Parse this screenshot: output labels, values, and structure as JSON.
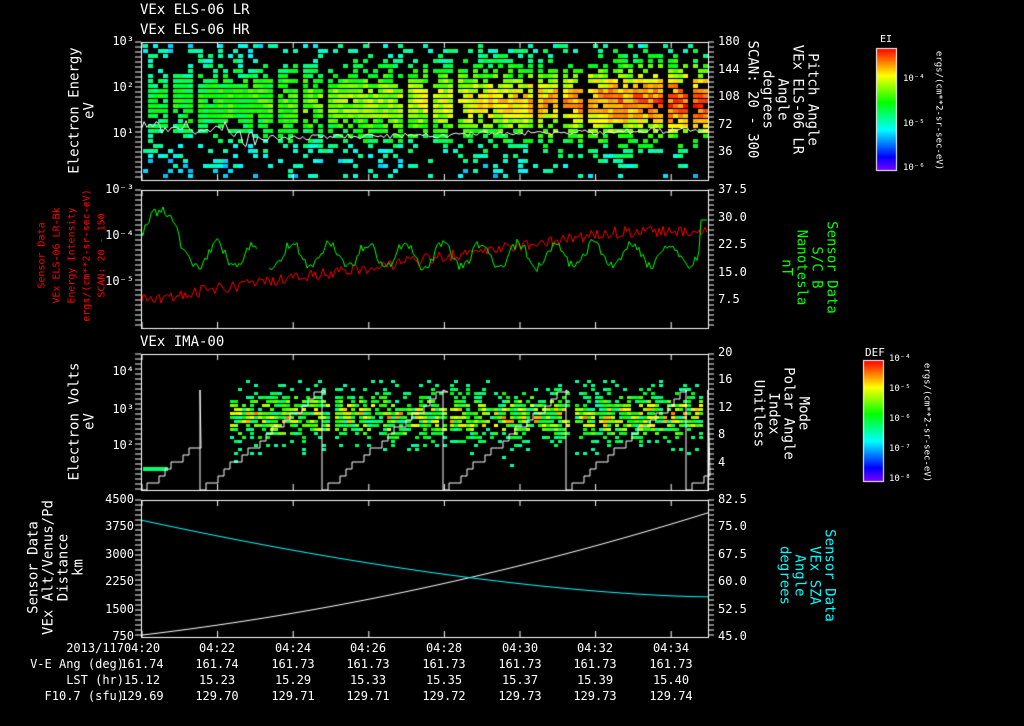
{
  "titles": {
    "p1a": "VEx ELS-06 LR",
    "p1b": "VEx ELS-06 HR",
    "p3": "VEx IMA-00"
  },
  "panel1": {
    "ylabel": [
      "Electron Energy",
      "eV"
    ],
    "yticks": [
      "10³",
      "10²",
      "10¹"
    ],
    "rticks": [
      "180",
      "144",
      "108",
      "72",
      "36"
    ],
    "rlabel": [
      "Pitch Angle",
      "VEx ELS-06 LR",
      "Angle",
      "degrees",
      "SCAN: 20 - 300"
    ],
    "colorbar": {
      "title": "EI",
      "ticks": [
        "10⁻⁴",
        "10⁻⁵",
        "10⁻⁶"
      ],
      "unit": "ergs/(cm**2-sr-sec-eV)"
    }
  },
  "panel2": {
    "llabel": [
      "Sensor Data",
      "VEx ELS-06 LR-Bk",
      "Energy Intensity",
      "ergs/(cm**2-sr-sec-eV)",
      "SCAN: 20 - 150"
    ],
    "yticks": [
      "10⁻³",
      "10⁻⁴",
      "10⁻⁵"
    ],
    "rticks": [
      "37.5",
      "30.0",
      "22.5",
      "15.0",
      "7.5"
    ],
    "rlabel": [
      "Sensor Data",
      "S/C B",
      "Nanotesla",
      "nT"
    ],
    "colors": {
      "left": "#ff0000",
      "right": "#00ff00"
    }
  },
  "panel3": {
    "ylabel": [
      "Electron Volts",
      "eV"
    ],
    "yticks": [
      "10⁴",
      "10³",
      "10²"
    ],
    "rticks": [
      "20",
      "16",
      "12",
      "8",
      "4"
    ],
    "rlabel": [
      "Mode",
      "Polar Angle",
      "Index",
      "Unitless"
    ],
    "colorbar": {
      "title": "DEF",
      "ticks": [
        "10⁻⁴",
        "10⁻⁵",
        "10⁻⁶",
        "10⁻⁷",
        "10⁻⁸"
      ],
      "unit": "ergs/(cm**2-sr-sec-eV)"
    }
  },
  "panel4": {
    "llabel": [
      "Sensor Data",
      "VEx Alt/Venus/Pd",
      "Distance",
      "km"
    ],
    "yticks": [
      "4500",
      "3750",
      "3000",
      "2250",
      "1500",
      "750"
    ],
    "rticks": [
      "82.5",
      "75.0",
      "67.5",
      "60.0",
      "52.5",
      "45.0"
    ],
    "rlabel": [
      "Sensor Data",
      "VEx SZA",
      "Angle",
      "degrees"
    ],
    "colors": {
      "left": "#ffffff",
      "right": "#00ffff"
    }
  },
  "footer": {
    "rows": [
      {
        "label": "2013/117",
        "values": [
          "04:20",
          "04:22",
          "04:24",
          "04:26",
          "04:28",
          "04:30",
          "04:32",
          "04:34"
        ]
      },
      {
        "label": "V-E Ang (deg)",
        "values": [
          "161.74",
          "161.74",
          "161.73",
          "161.73",
          "161.73",
          "161.73",
          "161.73",
          "161.73"
        ]
      },
      {
        "label": "LST (hr)",
        "values": [
          "15.12",
          "15.23",
          "15.29",
          "15.33",
          "15.35",
          "15.37",
          "15.39",
          "15.40"
        ]
      },
      {
        "label": "F10.7 (sfu)",
        "values": [
          "129.69",
          "129.70",
          "129.71",
          "129.71",
          "129.72",
          "129.73",
          "129.73",
          "129.74"
        ]
      }
    ]
  },
  "chart_data": [
    {
      "type": "heatmap",
      "title": "VEx ELS-06 LR / HR",
      "ylabel": "Electron Energy (eV)",
      "ylim": [
        1,
        1000
      ],
      "yscale": "log",
      "xlim": [
        "04:20",
        "04:35"
      ],
      "peak_energy_eV": 30,
      "overlay": "white spacecraft-potential line ~10-15 eV"
    },
    {
      "type": "line",
      "series": [
        {
          "name": "ELS-06 LR-Bk energy intensity",
          "color": "red",
          "y_start": 5e-06,
          "y_end": 0.0001
        },
        {
          "name": "S/C B (nT)",
          "color": "green",
          "range": [
            12,
            37
          ]
        }
      ],
      "ylim_left": [
        1e-06,
        0.001
      ],
      "ylim_right": [
        0,
        37.5
      ]
    },
    {
      "type": "heatmap",
      "title": "VEx IMA-00",
      "ylabel": "Electron Volts (eV)",
      "ylim": [
        10,
        50000
      ],
      "overlay": "Polar angle index sawtooth 0-16",
      "ylim_right": [
        0,
        20
      ]
    },
    {
      "type": "line",
      "series": [
        {
          "name": "Alt (km)",
          "color": "white",
          "y_start": 800,
          "y_end": 4150
        },
        {
          "name": "SZA (deg)",
          "color": "cyan",
          "y_start": 77,
          "y_end": 56
        }
      ],
      "ylim_left": [
        750,
        4500
      ],
      "ylim_right": [
        45,
        82.5
      ]
    }
  ]
}
